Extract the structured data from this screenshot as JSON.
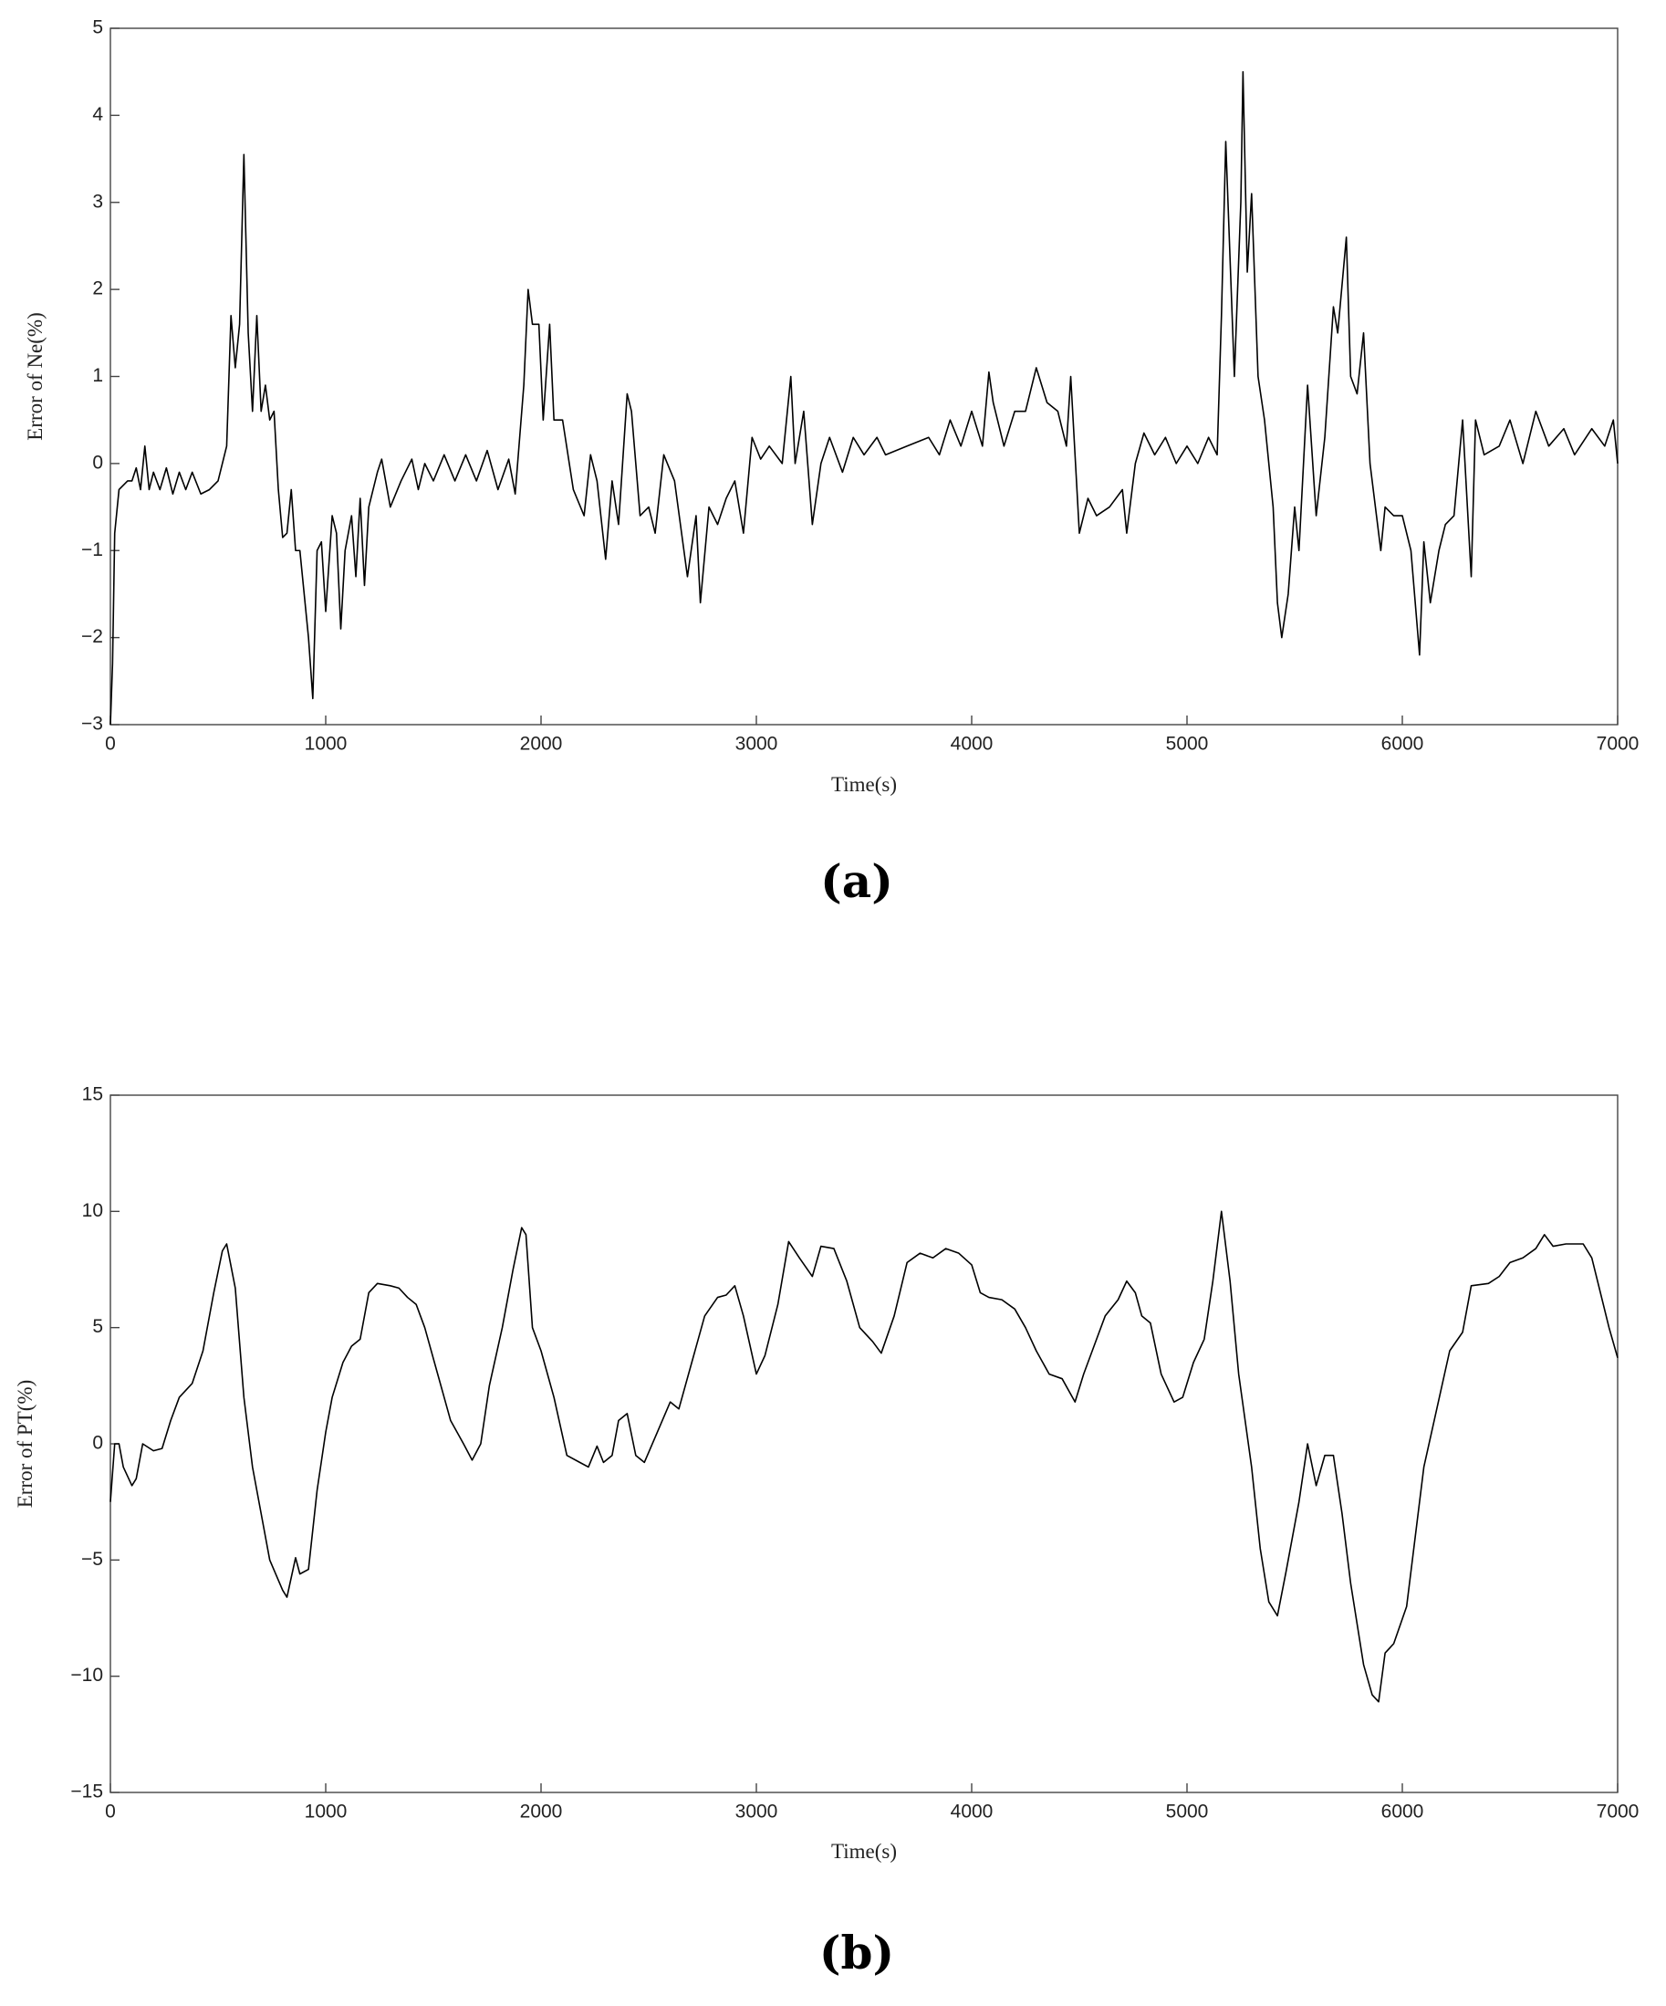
{
  "chart_data": [
    {
      "type": "line",
      "panel_label": "(a)",
      "xlabel": "Time(s)",
      "ylabel": "Error of Ne(%)",
      "xlim": [
        0,
        7000
      ],
      "xticks": [
        0,
        1000,
        2000,
        3000,
        4000,
        5000,
        6000,
        7000
      ],
      "ylim": [
        -3,
        5
      ],
      "yticks": [
        {
          "value": -3,
          "label": "−3"
        },
        {
          "value": -2,
          "label": "−2"
        },
        {
          "value": -1,
          "label": "−1"
        },
        0,
        1,
        2,
        3,
        4,
        5
      ],
      "x": [
        0,
        10,
        20,
        40,
        80,
        100,
        120,
        140,
        160,
        180,
        200,
        230,
        260,
        290,
        320,
        350,
        380,
        420,
        460,
        500,
        540,
        560,
        580,
        600,
        620,
        640,
        660,
        680,
        700,
        720,
        740,
        760,
        780,
        800,
        820,
        840,
        860,
        880,
        920,
        940,
        960,
        980,
        1000,
        1030,
        1050,
        1070,
        1090,
        1120,
        1140,
        1160,
        1180,
        1200,
        1240,
        1260,
        1300,
        1350,
        1400,
        1430,
        1460,
        1500,
        1550,
        1600,
        1650,
        1700,
        1750,
        1800,
        1850,
        1880,
        1920,
        1940,
        1960,
        1990,
        2010,
        2040,
        2060,
        2100,
        2150,
        2200,
        2230,
        2260,
        2300,
        2330,
        2360,
        2400,
        2420,
        2460,
        2500,
        2530,
        2570,
        2620,
        2680,
        2720,
        2740,
        2780,
        2820,
        2860,
        2900,
        2940,
        2980,
        3020,
        3060,
        3120,
        3160,
        3180,
        3220,
        3260,
        3300,
        3340,
        3400,
        3450,
        3500,
        3560,
        3600,
        3700,
        3800,
        3850,
        3900,
        3950,
        4000,
        4050,
        4080,
        4100,
        4150,
        4200,
        4250,
        4300,
        4350,
        4400,
        4440,
        4460,
        4500,
        4540,
        4580,
        4640,
        4700,
        4720,
        4760,
        4800,
        4850,
        4900,
        4950,
        5000,
        5050,
        5100,
        5140,
        5160,
        5180,
        5220,
        5250,
        5260,
        5280,
        5300,
        5330,
        5360,
        5400,
        5420,
        5440,
        5470,
        5500,
        5520,
        5560,
        5600,
        5640,
        5680,
        5700,
        5740,
        5760,
        5790,
        5820,
        5850,
        5880,
        5900,
        5920,
        5960,
        6000,
        6040,
        6080,
        6100,
        6130,
        6170,
        6200,
        6240,
        6280,
        6320,
        6340,
        6380,
        6450,
        6500,
        6560,
        6620,
        6680,
        6750,
        6800,
        6880,
        6940,
        6980,
        7000
      ],
      "series": [
        {
          "color": "#000000",
          "values": [
            -3,
            -2.3,
            -0.8,
            -0.3,
            -0.2,
            -0.2,
            -0.05,
            -0.3,
            0.2,
            -0.3,
            -0.1,
            -0.3,
            -0.05,
            -0.35,
            -0.1,
            -0.3,
            -0.1,
            -0.35,
            -0.3,
            -0.2,
            0.2,
            1.7,
            1.1,
            1.6,
            3.55,
            1.5,
            0.6,
            1.7,
            0.6,
            0.9,
            0.5,
            0.6,
            -0.3,
            -0.85,
            -0.8,
            -0.3,
            -1.0,
            -1.0,
            -2.0,
            -2.7,
            -1.0,
            -0.9,
            -1.7,
            -0.6,
            -0.8,
            -1.9,
            -1.0,
            -0.6,
            -1.3,
            -0.4,
            -1.4,
            -0.5,
            -0.1,
            0.05,
            -0.5,
            -0.2,
            0.05,
            -0.3,
            0.0,
            -0.2,
            0.1,
            -0.2,
            0.1,
            -0.2,
            0.15,
            -0.3,
            0.05,
            -0.35,
            0.9,
            2.0,
            1.6,
            1.6,
            0.5,
            1.6,
            0.5,
            0.5,
            -0.3,
            -0.6,
            0.1,
            -0.2,
            -1.1,
            -0.2,
            -0.7,
            0.8,
            0.6,
            -0.6,
            -0.5,
            -0.8,
            0.1,
            -0.2,
            -1.3,
            -0.6,
            -1.6,
            -0.5,
            -0.7,
            -0.4,
            -0.2,
            -0.8,
            0.3,
            0.05,
            0.2,
            0.0,
            1.0,
            0.0,
            0.6,
            -0.7,
            0.0,
            0.3,
            -0.1,
            0.3,
            0.1,
            0.3,
            0.1,
            0.2,
            0.3,
            0.1,
            0.5,
            0.2,
            0.6,
            0.2,
            1.05,
            0.7,
            0.2,
            0.6,
            0.6,
            1.1,
            0.7,
            0.6,
            0.2,
            1.0,
            -0.8,
            -0.4,
            -0.6,
            -0.5,
            -0.3,
            -0.8,
            0.0,
            0.35,
            0.1,
            0.3,
            0.0,
            0.2,
            0.0,
            0.3,
            0.1,
            1.7,
            3.7,
            1.0,
            3.0,
            4.5,
            2.2,
            3.1,
            1.0,
            0.5,
            -0.5,
            -1.6,
            -2.0,
            -1.5,
            -0.5,
            -1.0,
            0.9,
            -0.6,
            0.3,
            1.8,
            1.5,
            2.6,
            1.0,
            0.8,
            1.5,
            0.0,
            -0.6,
            -1.0,
            -0.5,
            -0.6,
            -0.6,
            -1.0,
            -2.2,
            -0.9,
            -1.6,
            -1.0,
            -0.7,
            -0.6,
            0.5,
            -1.3,
            0.5,
            0.1,
            0.2,
            0.5,
            0.0,
            0.6,
            0.2,
            0.4,
            0.1,
            0.4,
            0.2,
            0.5,
            0.0
          ]
        }
      ]
    },
    {
      "type": "line",
      "panel_label": "(b)",
      "xlabel": "Time(s)",
      "ylabel": "Error of PT(%)",
      "xlim": [
        0,
        7000
      ],
      "xticks": [
        0,
        1000,
        2000,
        3000,
        4000,
        5000,
        6000,
        7000
      ],
      "ylim": [
        -15,
        15
      ],
      "yticks": [
        {
          "value": -15,
          "label": "−15"
        },
        {
          "value": -10,
          "label": "−10"
        },
        {
          "value": -5,
          "label": "−5"
        },
        0,
        5,
        10,
        15
      ],
      "x": [
        0,
        20,
        40,
        60,
        100,
        120,
        150,
        200,
        240,
        280,
        320,
        380,
        430,
        480,
        520,
        540,
        580,
        620,
        660,
        700,
        740,
        800,
        820,
        860,
        880,
        920,
        960,
        1000,
        1030,
        1080,
        1120,
        1160,
        1200,
        1240,
        1300,
        1340,
        1380,
        1420,
        1460,
        1520,
        1580,
        1640,
        1680,
        1720,
        1760,
        1820,
        1870,
        1910,
        1930,
        1960,
        2000,
        2060,
        2120,
        2180,
        2220,
        2260,
        2290,
        2330,
        2360,
        2400,
        2440,
        2480,
        2540,
        2600,
        2640,
        2700,
        2760,
        2820,
        2860,
        2900,
        2940,
        3000,
        3040,
        3100,
        3150,
        3200,
        3260,
        3300,
        3360,
        3420,
        3480,
        3540,
        3580,
        3640,
        3700,
        3760,
        3820,
        3880,
        3940,
        4000,
        4040,
        4080,
        4140,
        4200,
        4250,
        4300,
        4360,
        4420,
        4480,
        4520,
        4580,
        4620,
        4680,
        4720,
        4760,
        4790,
        4830,
        4880,
        4940,
        4980,
        5030,
        5080,
        5120,
        5160,
        5200,
        5240,
        5300,
        5340,
        5380,
        5420,
        5460,
        5520,
        5560,
        5600,
        5640,
        5680,
        5720,
        5760,
        5820,
        5860,
        5890,
        5920,
        5960,
        6020,
        6060,
        6100,
        6160,
        6220,
        6280,
        6320,
        6400,
        6450,
        6500,
        6560,
        6620,
        6660,
        6700,
        6760,
        6840,
        6880,
        6920,
        6960,
        7000
      ],
      "series": [
        {
          "color": "#000000",
          "values": [
            -2.5,
            0.0,
            0.0,
            -1.0,
            -1.8,
            -1.5,
            0.0,
            -0.3,
            -0.2,
            1.0,
            2.0,
            2.6,
            4.0,
            6.5,
            8.3,
            8.6,
            6.7,
            2.0,
            -1.0,
            -3.0,
            -5.0,
            -6.3,
            -6.6,
            -4.9,
            -5.6,
            -5.4,
            -2.0,
            0.5,
            2.0,
            3.5,
            4.2,
            4.5,
            6.5,
            6.9,
            6.8,
            6.7,
            6.3,
            6.0,
            5.0,
            3.0,
            1.0,
            0.0,
            -0.7,
            0.0,
            2.5,
            5.0,
            7.5,
            9.3,
            9.0,
            5.0,
            4.0,
            2.0,
            -0.5,
            -0.8,
            -1.0,
            -0.1,
            -0.8,
            -0.5,
            1.0,
            1.3,
            -0.5,
            -0.8,
            0.5,
            1.8,
            1.5,
            3.5,
            5.5,
            6.3,
            6.4,
            6.8,
            5.5,
            3.0,
            3.8,
            6.0,
            8.7,
            8.0,
            7.2,
            8.5,
            8.4,
            7.0,
            5.0,
            4.4,
            3.9,
            5.5,
            7.8,
            8.2,
            8.0,
            8.4,
            8.2,
            7.7,
            6.5,
            6.3,
            6.2,
            5.8,
            5.0,
            4.0,
            3.0,
            2.8,
            1.8,
            3.0,
            4.5,
            5.5,
            6.2,
            7.0,
            6.5,
            5.5,
            5.2,
            3.0,
            1.8,
            2.0,
            3.5,
            4.5,
            7.0,
            10.0,
            7.0,
            3.0,
            -1.0,
            -4.5,
            -6.8,
            -7.4,
            -5.5,
            -2.5,
            0.0,
            -1.8,
            -0.5,
            -0.5,
            -3.0,
            -6.0,
            -9.5,
            -10.8,
            -11.1,
            -9.0,
            -8.6,
            -7.0,
            -4.0,
            -1.0,
            1.5,
            4.0,
            4.8,
            6.8,
            6.9,
            7.2,
            7.8,
            8.0,
            8.4,
            9.0,
            8.5,
            8.6,
            8.6,
            8.0,
            6.5,
            5.0,
            3.7
          ]
        }
      ]
    }
  ]
}
